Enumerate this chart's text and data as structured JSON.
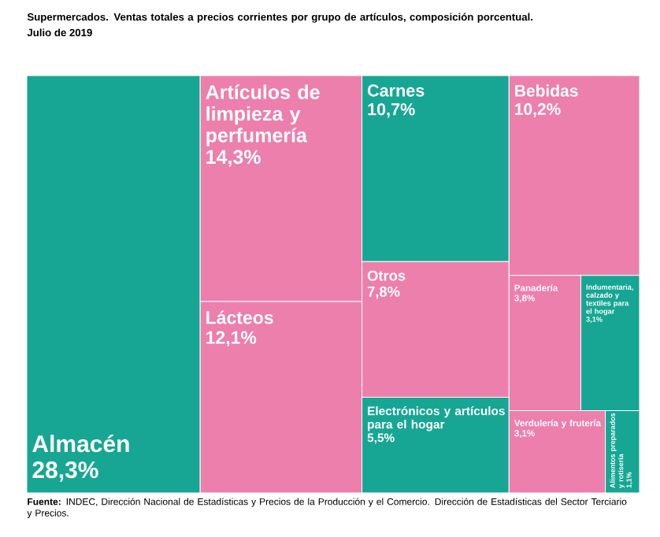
{
  "chart_data": {
    "type": "other",
    "title": "Supermercados. Ventas totales a precios corrientes por grupo de artículos, composición porcentual.",
    "subtitle": "Julio de 2019",
    "categories": [
      "Almacén",
      "Artículos de limpieza y perfumería",
      "Lácteos",
      "Carnes",
      "Otros",
      "Electrónicos y artículos para el hogar",
      "Bebidas",
      "Panadería",
      "Indumentaria, calzado y textiles para el hogar",
      "Verdulería y frutería",
      "Alimentos preparados y rotisería"
    ],
    "values": [
      28.3,
      14.3,
      12.1,
      10.7,
      7.8,
      5.5,
      10.2,
      3.8,
      3.1,
      3.1,
      1.1
    ],
    "value_labels": [
      "28,3%",
      "14,3%",
      "12,1%",
      "10,7%",
      "7,8%",
      "5,5%",
      "10,2%",
      "3,8%",
      "3,1%",
      "3,1%",
      "1,1%"
    ],
    "colors": [
      "#17a693",
      "#ec7fac",
      "#ec7fac",
      "#17a693",
      "#ec7fac",
      "#17a693",
      "#ec7fac",
      "#ec7fac",
      "#17a693",
      "#ec7fac",
      "#17a693"
    ],
    "annotations": [
      "**Fuente:** INDEC, Dirección Nacional de Estadísticas y Precios de la Producción y el Comercio. Dirección de Estadísticas del Sector Terciario y Precios."
    ]
  }
}
